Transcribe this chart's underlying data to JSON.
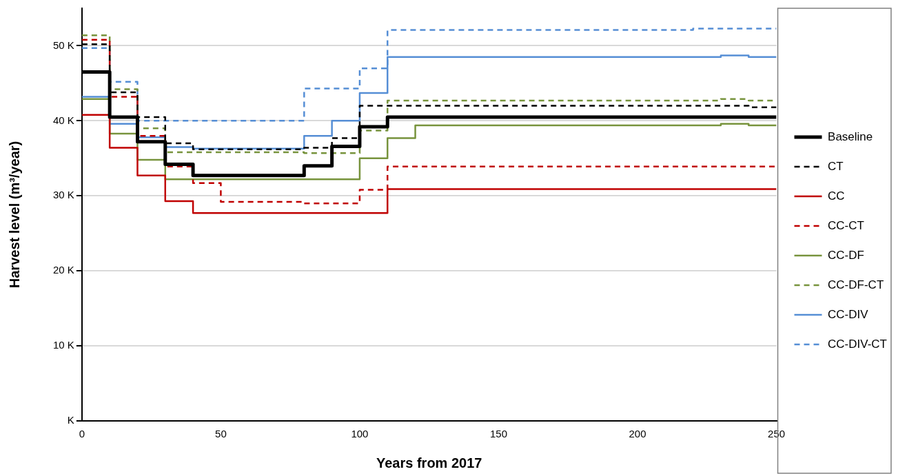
{
  "chart_data": {
    "type": "step",
    "xlabel": "Years from 2017",
    "ylabel": "Harvest level (m³/year)",
    "x": [
      0,
      10,
      20,
      30,
      40,
      50,
      60,
      70,
      80,
      90,
      100,
      110,
      120,
      130,
      140,
      150,
      160,
      170,
      180,
      190,
      200,
      210,
      220,
      230,
      240,
      250
    ],
    "xlim": [
      0,
      250
    ],
    "xticks": [
      0,
      50,
      100,
      150,
      200,
      250
    ],
    "ylim": [
      0,
      55000
    ],
    "yticks": [
      {
        "value": 0,
        "label": "K"
      },
      {
        "value": 10000,
        "label": "10 K"
      },
      {
        "value": 20000,
        "label": "20 K"
      },
      {
        "value": 30000,
        "label": "30 K"
      },
      {
        "value": 40000,
        "label": "40 K"
      },
      {
        "value": 50000,
        "label": "50 K"
      }
    ],
    "grid": "y",
    "legend": "right",
    "marker": "none",
    "series": [
      {
        "name": "Baseline",
        "color": "#000000",
        "line_style": "solid",
        "values": [
          46500,
          40500,
          37200,
          34200,
          32700,
          32700,
          32700,
          32700,
          34000,
          36600,
          39200,
          40500,
          40500,
          40500,
          40500,
          40500,
          40500,
          40500,
          40500,
          40500,
          40500,
          40500,
          40500,
          40500,
          40500,
          40500
        ]
      },
      {
        "name": "CT",
        "color": "#000000",
        "line_style": "dashed",
        "values": [
          50200,
          43800,
          40500,
          37000,
          36200,
          36200,
          36200,
          36200,
          36400,
          37700,
          42000,
          42000,
          42000,
          42000,
          42000,
          42000,
          42000,
          42000,
          42000,
          42000,
          42000,
          42000,
          42000,
          42000,
          41800,
          41800
        ]
      },
      {
        "name": "CC",
        "color": "#c00000",
        "line_style": "solid",
        "values": [
          40800,
          36400,
          32700,
          29300,
          27700,
          27700,
          27700,
          27700,
          27700,
          27700,
          27700,
          30900,
          30900,
          30900,
          30900,
          30900,
          30900,
          30900,
          30900,
          30900,
          30900,
          30900,
          30900,
          30900,
          30900,
          30900
        ]
      },
      {
        "name": "CC-CT",
        "color": "#c00000",
        "line_style": "dashed",
        "values": [
          50800,
          43200,
          38000,
          33900,
          31700,
          29200,
          29200,
          29200,
          29000,
          29000,
          30800,
          33900,
          33900,
          33900,
          33900,
          33900,
          33900,
          33900,
          33900,
          33900,
          33900,
          33900,
          33900,
          33900,
          33900,
          33900
        ]
      },
      {
        "name": "CC-DF",
        "color": "#77933c",
        "line_style": "solid",
        "values": [
          42900,
          38300,
          34800,
          32200,
          32200,
          32200,
          32200,
          32200,
          32200,
          32200,
          35000,
          37700,
          39400,
          39400,
          39400,
          39400,
          39400,
          39400,
          39400,
          39400,
          39400,
          39400,
          39400,
          39600,
          39400,
          39400
        ]
      },
      {
        "name": "CC-DF-CT",
        "color": "#77933c",
        "line_style": "dashed",
        "values": [
          51400,
          44200,
          39000,
          35800,
          35800,
          35800,
          35800,
          35800,
          35700,
          35700,
          38700,
          42700,
          42700,
          42700,
          42700,
          42700,
          42700,
          42700,
          42700,
          42700,
          42700,
          42700,
          42700,
          42900,
          42700,
          42700
        ]
      },
      {
        "name": "CC-DIV",
        "color": "#558ed5",
        "line_style": "solid",
        "values": [
          43200,
          39600,
          37800,
          36500,
          36300,
          36300,
          36300,
          36300,
          38000,
          40000,
          43700,
          48500,
          48500,
          48500,
          48500,
          48500,
          48500,
          48500,
          48500,
          48500,
          48500,
          48500,
          48500,
          48700,
          48500,
          48500
        ]
      },
      {
        "name": "CC-DIV-CT",
        "color": "#558ed5",
        "line_style": "dashed",
        "values": [
          49700,
          45200,
          40000,
          40000,
          40000,
          40000,
          40000,
          40000,
          44300,
          44300,
          47000,
          52100,
          52100,
          52100,
          52100,
          52100,
          52100,
          52100,
          52100,
          52100,
          52100,
          52100,
          52300,
          52300,
          52300,
          52300
        ]
      }
    ]
  }
}
